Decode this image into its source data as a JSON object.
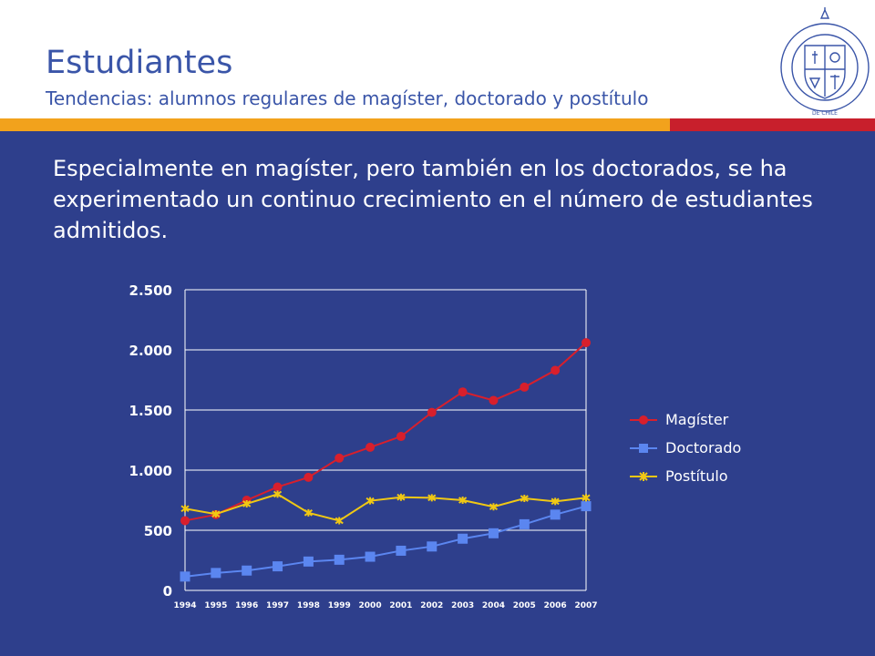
{
  "header": {
    "title": "Estudiantes",
    "subtitle": "Tendencias: alumnos regulares de magíster, doctorado y postítulo"
  },
  "logo": {
    "name": "Pontificia Universidad Católica de Chile seal",
    "text": "PONTIFICIA UNIVERSIDAD CATOLICA DE CHILE"
  },
  "colors": {
    "background": "#2e3f8c",
    "title": "#3a55a8",
    "band_yellow": "#f2a21c",
    "band_red": "#c81f2c",
    "magister": "#d81f2c",
    "doctorado": "#5b86f0",
    "postitulo": "#f0c814"
  },
  "body": {
    "text": "Especialmente en magíster, pero también en los doctorados, se ha experimentado un continuo crecimiento en el número de estudiantes admitidos."
  },
  "chart_data": {
    "type": "line",
    "x": [
      "1994",
      "1995",
      "1996",
      "1997",
      "1998",
      "1999",
      "2000",
      "2001",
      "2002",
      "2003",
      "2004",
      "2005",
      "2006",
      "2007"
    ],
    "y_ticks": [
      0,
      500,
      1000,
      1500,
      2000,
      2500
    ],
    "y_tick_labels": [
      "0",
      "500",
      "1.000",
      "1.500",
      "2.000",
      "2.500"
    ],
    "ylim": [
      0,
      2500
    ],
    "grid": "horizontal",
    "legend_position": "right",
    "series": [
      {
        "name": "Magíster",
        "color": "#d81f2c",
        "marker": "circle",
        "values": [
          580,
          630,
          750,
          860,
          940,
          1100,
          1190,
          1280,
          1480,
          1650,
          1580,
          1690,
          1830,
          2060
        ]
      },
      {
        "name": "Doctorado",
        "color": "#5b86f0",
        "marker": "square",
        "values": [
          115,
          145,
          165,
          200,
          240,
          255,
          280,
          330,
          365,
          430,
          475,
          550,
          630,
          700
        ]
      },
      {
        "name": "Postítulo",
        "color": "#f0c814",
        "marker": "star",
        "values": [
          680,
          635,
          720,
          800,
          645,
          580,
          745,
          775,
          770,
          750,
          695,
          765,
          740,
          770
        ]
      }
    ]
  }
}
